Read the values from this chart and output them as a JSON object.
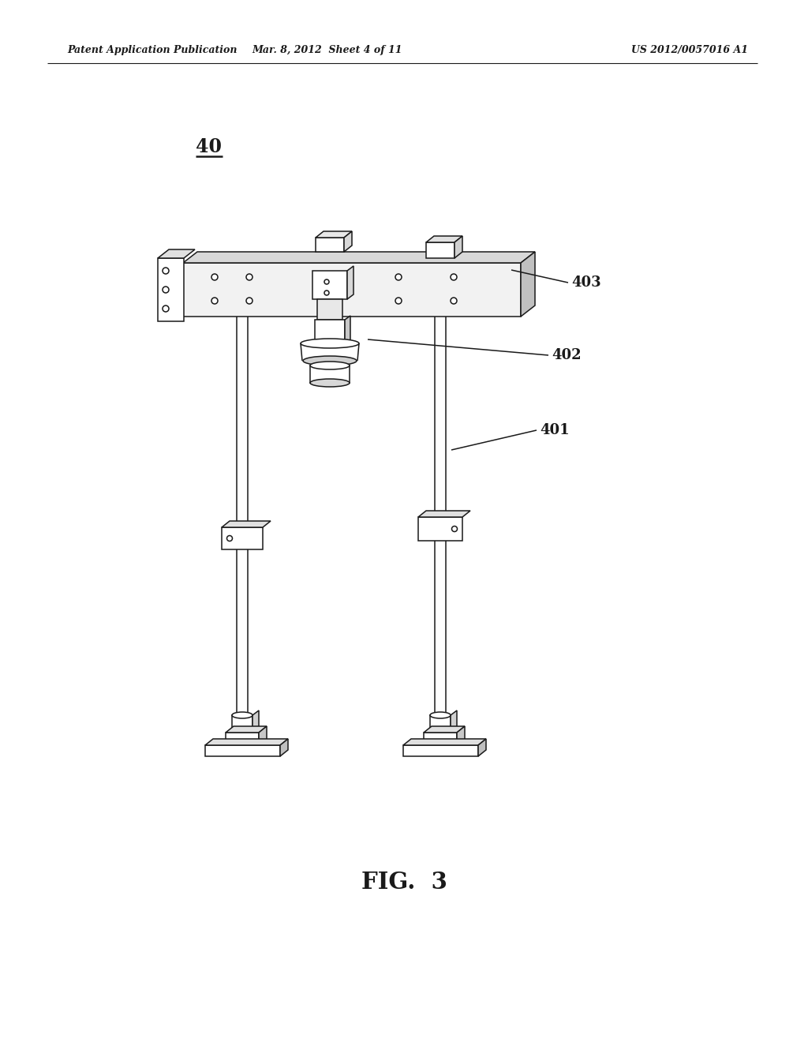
{
  "bg_color": "#ffffff",
  "lc": "#1a1a1a",
  "lw": 1.1,
  "header_left": "Patent Application Publication",
  "header_mid": "Mar. 8, 2012  Sheet 4 of 11",
  "header_right": "US 2012/0057016 A1",
  "fig_label": "FIG.  3",
  "part_label": "40",
  "label_401": "401",
  "label_402": "402",
  "label_403": "403",
  "plate_color_top": "#d8d8d8",
  "plate_color_right": "#c0c0c0",
  "plate_color_front": "#f0f0f0",
  "foot_color_side": "#d0d0d0",
  "cam_mid_color": "#c8c8c8",
  "cam_dark_color": "#a8a8a8"
}
